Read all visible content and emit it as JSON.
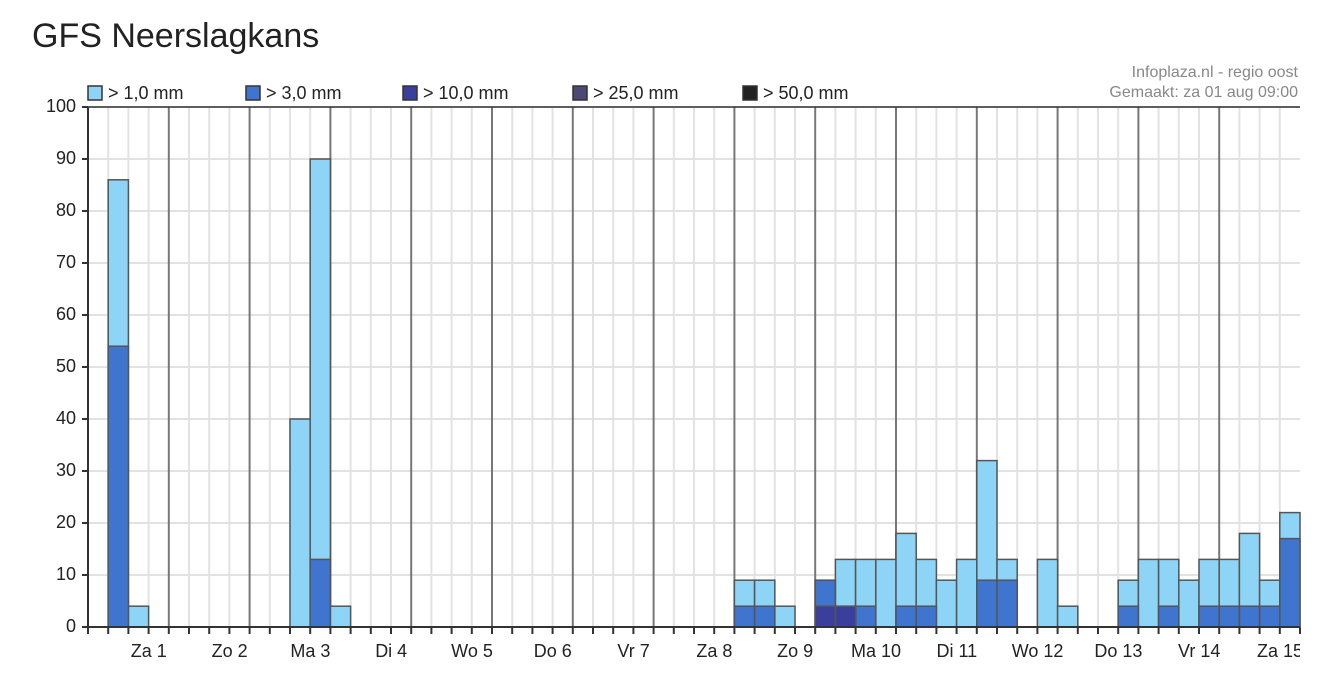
{
  "chart_data": {
    "type": "bar",
    "title": "GFS Neerslagkans",
    "source": "Infoplaza.nl - regio oost",
    "made": "Gemaakt: za 01 aug 09:00",
    "categories": [
      "Za 1",
      "Zo 2",
      "Ma 3",
      "Di 4",
      "Wo 5",
      "Do 6",
      "Vr 7",
      "Za 8",
      "Zo 9",
      "Ma 10",
      "Di 11",
      "Wo 12",
      "Do 13",
      "Vr 14",
      "Za 15"
    ],
    "ylim": [
      0,
      100
    ],
    "yticks": [
      0,
      10,
      20,
      30,
      40,
      50,
      60,
      70,
      80,
      90,
      100
    ],
    "grid": true,
    "series": [
      {
        "name": "> 1,0 mm",
        "color": "#8dd4f6",
        "values": [
          [
            0,
            86,
            4,
            0
          ],
          [
            0,
            0,
            0,
            0
          ],
          [
            0,
            0,
            40,
            90
          ],
          [
            4,
            0,
            0,
            0
          ],
          [
            0,
            0,
            0,
            0
          ],
          [
            0,
            0,
            0,
            0
          ],
          [
            0,
            0,
            0,
            0
          ],
          [
            0,
            0,
            0,
            0
          ],
          [
            9,
            9,
            4,
            0
          ],
          [
            9,
            13,
            13,
            13
          ],
          [
            18,
            13,
            9,
            13
          ],
          [
            32,
            13,
            0,
            13
          ],
          [
            4,
            0,
            0,
            9
          ],
          [
            13,
            13,
            9,
            13
          ],
          [
            13,
            18,
            9,
            22
          ]
        ]
      },
      {
        "name": "> 3,0 mm",
        "color": "#3f74cf",
        "values": [
          [
            0,
            54,
            0,
            0
          ],
          [
            0,
            0,
            0,
            0
          ],
          [
            0,
            0,
            0,
            13
          ],
          [
            0,
            0,
            0,
            0
          ],
          [
            0,
            0,
            0,
            0
          ],
          [
            0,
            0,
            0,
            0
          ],
          [
            0,
            0,
            0,
            0
          ],
          [
            0,
            0,
            0,
            0
          ],
          [
            4,
            4,
            0,
            0
          ],
          [
            9,
            4,
            4,
            0
          ],
          [
            4,
            4,
            0,
            0
          ],
          [
            9,
            9,
            0,
            0
          ],
          [
            0,
            0,
            0,
            4
          ],
          [
            0,
            4,
            0,
            4
          ],
          [
            4,
            4,
            4,
            17
          ]
        ]
      },
      {
        "name": "> 10,0 mm",
        "color": "#3a3f9e",
        "values": [
          [
            0,
            0,
            0,
            0
          ],
          [
            0,
            0,
            0,
            0
          ],
          [
            0,
            0,
            0,
            0
          ],
          [
            0,
            0,
            0,
            0
          ],
          [
            0,
            0,
            0,
            0
          ],
          [
            0,
            0,
            0,
            0
          ],
          [
            0,
            0,
            0,
            0
          ],
          [
            0,
            0,
            0,
            0
          ],
          [
            0,
            0,
            0,
            0
          ],
          [
            4,
            4,
            0,
            0
          ],
          [
            0,
            0,
            0,
            0
          ],
          [
            0,
            0,
            0,
            0
          ],
          [
            0,
            0,
            0,
            0
          ],
          [
            0,
            0,
            0,
            0
          ],
          [
            0,
            0,
            0,
            0
          ]
        ]
      },
      {
        "name": "> 25,0 mm",
        "color": "#4c4a73",
        "values": [
          [
            0,
            0,
            0,
            0
          ],
          [
            0,
            0,
            0,
            0
          ],
          [
            0,
            0,
            0,
            0
          ],
          [
            0,
            0,
            0,
            0
          ],
          [
            0,
            0,
            0,
            0
          ],
          [
            0,
            0,
            0,
            0
          ],
          [
            0,
            0,
            0,
            0
          ],
          [
            0,
            0,
            0,
            0
          ],
          [
            0,
            0,
            0,
            0
          ],
          [
            0,
            0,
            0,
            0
          ],
          [
            0,
            0,
            0,
            0
          ],
          [
            0,
            0,
            0,
            0
          ],
          [
            0,
            0,
            0,
            0
          ],
          [
            0,
            0,
            0,
            0
          ],
          [
            0,
            0,
            0,
            0
          ]
        ]
      },
      {
        "name": "> 50,0 mm",
        "color": "#222222",
        "values": [
          [
            0,
            0,
            0,
            0
          ],
          [
            0,
            0,
            0,
            0
          ],
          [
            0,
            0,
            0,
            0
          ],
          [
            0,
            0,
            0,
            0
          ],
          [
            0,
            0,
            0,
            0
          ],
          [
            0,
            0,
            0,
            0
          ],
          [
            0,
            0,
            0,
            0
          ],
          [
            0,
            0,
            0,
            0
          ],
          [
            0,
            0,
            0,
            0
          ],
          [
            0,
            0,
            0,
            0
          ],
          [
            0,
            0,
            0,
            0
          ],
          [
            0,
            0,
            0,
            0
          ],
          [
            0,
            0,
            0,
            0
          ],
          [
            0,
            0,
            0,
            0
          ],
          [
            0,
            0,
            0,
            0
          ]
        ]
      }
    ]
  }
}
